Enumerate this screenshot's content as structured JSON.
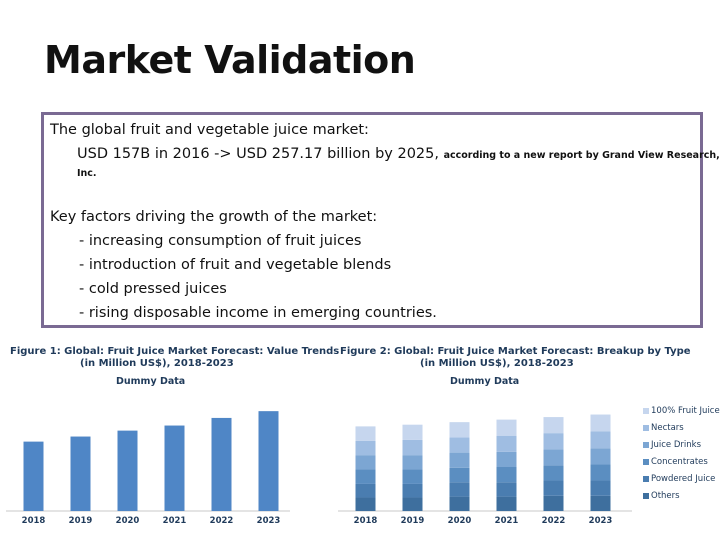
{
  "slide": {
    "title": "Market Validation",
    "box": {
      "line1": "The global fruit and vegetable juice market:",
      "line2_main": "USD 157B in 2016 -> USD 257.17 billion by 2025,",
      "line2_small": "according to a new report by Grand View Research,",
      "line3_small": "Inc.",
      "line4": "Key factors driving the growth of the market:",
      "bullets": [
        "- increasing consumption of fruit juices",
        "- introduction of fruit and vegetable blends",
        "- cold pressed juices",
        "- rising disposable income in emerging countries."
      ]
    }
  },
  "chart_data": [
    {
      "type": "bar",
      "title": "Figure 1: Global: Fruit Juice Market Forecast: Value Trends",
      "subtitle": "(in Million US$), 2018-2023",
      "note": "Dummy Data",
      "categories": [
        "2018",
        "2019",
        "2020",
        "2021",
        "2022",
        "2023"
      ],
      "values": [
        82,
        88,
        95,
        101,
        110,
        118
      ],
      "ylim": [
        0,
        130
      ],
      "color": "#4f86c6"
    },
    {
      "type": "bar",
      "stacked": true,
      "title": "Figure 2: Global: Fruit Juice Market Forecast: Breakup by Type",
      "subtitle": "(in Million US$), 2018-2023",
      "note": "Dummy Data",
      "categories": [
        "2018",
        "2019",
        "2020",
        "2021",
        "2022",
        "2023"
      ],
      "series": [
        {
          "name": "Others",
          "values": [
            16,
            16,
            17,
            17,
            18,
            18
          ],
          "color": "#3e6f9e"
        },
        {
          "name": "Powdered Juice",
          "values": [
            16,
            16,
            17,
            17,
            18,
            18
          ],
          "color": "#4a7db0"
        },
        {
          "name": "Concentrates",
          "values": [
            17,
            17,
            17,
            18,
            18,
            19
          ],
          "color": "#5b8ec1"
        },
        {
          "name": "Juice Drinks",
          "values": [
            17,
            17,
            18,
            18,
            19,
            19
          ],
          "color": "#7ca6d3"
        },
        {
          "name": "Nectars",
          "values": [
            17,
            18,
            18,
            19,
            19,
            20
          ],
          "color": "#9fbde2"
        },
        {
          "name": "100% Fruit Juice",
          "values": [
            17,
            18,
            18,
            19,
            19,
            20
          ],
          "color": "#c6d6ee"
        }
      ],
      "ylim": [
        0,
        130
      ]
    }
  ]
}
